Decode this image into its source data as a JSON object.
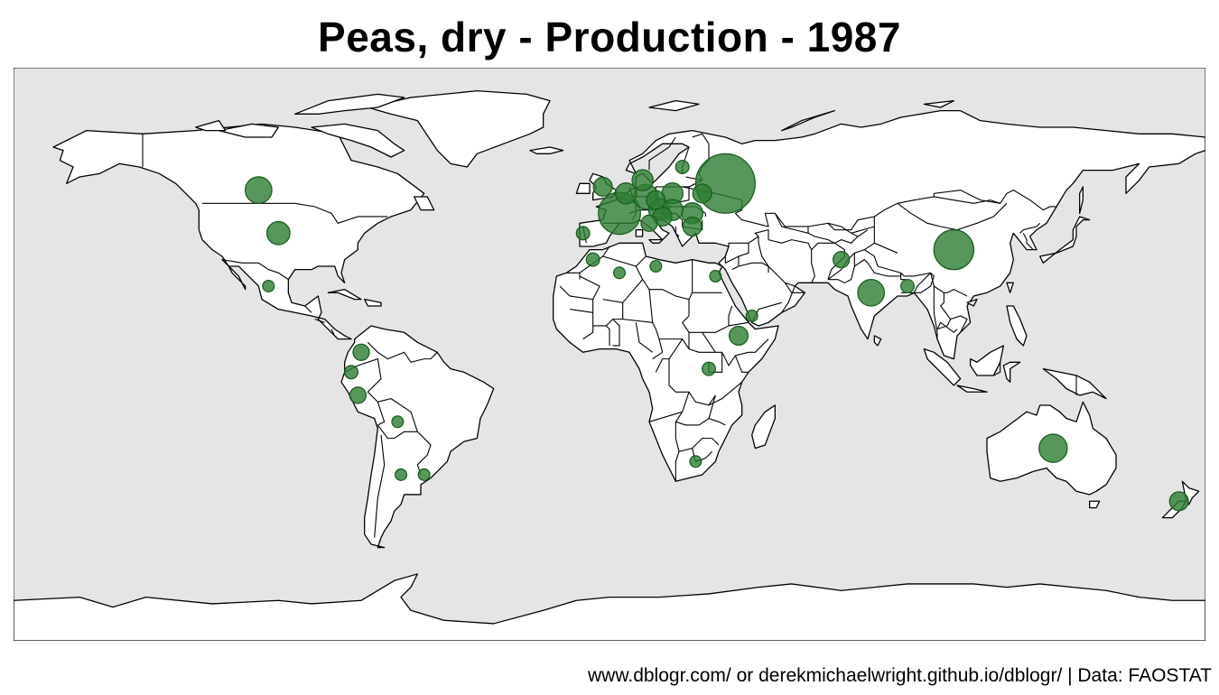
{
  "title": "Peas, dry - Production - 1987",
  "caption": "www.dblogr.com/ or derekmichaelwright.github.io/dblogr/ | Data: FAOSTAT",
  "colors": {
    "ocean": "#e5e5e5",
    "land": "#ffffff",
    "border": "#000000",
    "bubble_fill": "#2e7d32",
    "bubble_stroke": "#1b5e20"
  },
  "chart_data": {
    "type": "bubble-map",
    "projection": "equirectangular",
    "item": "Peas, dry",
    "element": "Production",
    "year": 1987,
    "bubbles": [
      {
        "lon": 35,
        "lat": 55,
        "size": 40
      },
      {
        "lon": 3,
        "lat": 46,
        "size": 20
      },
      {
        "lon": 104,
        "lat": 35,
        "size": 18
      },
      {
        "lon": -106,
        "lat": 53,
        "size": 8
      },
      {
        "lon": 79,
        "lat": 22,
        "size": 8
      },
      {
        "lon": 134,
        "lat": -25,
        "size": 9
      },
      {
        "lon": -100,
        "lat": 40,
        "size": 6
      },
      {
        "lon": 11,
        "lat": 51,
        "size": 7
      },
      {
        "lon": 19,
        "lat": 52,
        "size": 5
      },
      {
        "lon": 5,
        "lat": 52,
        "size": 5
      },
      {
        "lon": 10,
        "lat": 56,
        "size": 5
      },
      {
        "lon": 15,
        "lat": 47,
        "size": 5
      },
      {
        "lon": 25,
        "lat": 46,
        "size": 5
      },
      {
        "lon": 19,
        "lat": 47,
        "size": 5
      },
      {
        "lon": 16,
        "lat": 45,
        "size": 4
      },
      {
        "lon": 14,
        "lat": 50,
        "size": 4
      },
      {
        "lon": 25,
        "lat": 42,
        "size": 4
      },
      {
        "lon": -2,
        "lat": 54,
        "size": 4
      },
      {
        "lon": 12,
        "lat": 43,
        "size": 3
      },
      {
        "lon": 28,
        "lat": 52,
        "size": 4
      },
      {
        "lon": 172,
        "lat": -41,
        "size": 4
      },
      {
        "lon": 39,
        "lat": 9,
        "size": 4
      },
      {
        "lon": 70,
        "lat": 32,
        "size": 3
      },
      {
        "lon": 90,
        "lat": 24,
        "size": 2
      },
      {
        "lon": -75,
        "lat": 4,
        "size": 3
      },
      {
        "lon": -78,
        "lat": -2,
        "size": 2
      },
      {
        "lon": -76,
        "lat": -9,
        "size": 3
      },
      {
        "lon": 30,
        "lat": -1,
        "size": 2
      },
      {
        "lon": 22,
        "lat": 60,
        "size": 2
      },
      {
        "lon": 32,
        "lat": 27,
        "size": 1.5
      },
      {
        "lon": -5,
        "lat": 32,
        "size": 2
      },
      {
        "lon": -8,
        "lat": 40,
        "size": 2
      },
      {
        "lon": -103,
        "lat": 24,
        "size": 1.5
      },
      {
        "lon": -64,
        "lat": -17,
        "size": 1.5
      },
      {
        "lon": -63,
        "lat": -33,
        "size": 1.5
      },
      {
        "lon": -56,
        "lat": -33,
        "size": 1.5
      },
      {
        "lon": 26,
        "lat": -29,
        "size": 1.5
      },
      {
        "lon": 3,
        "lat": 28,
        "size": 1.5
      },
      {
        "lon": 14,
        "lat": 30,
        "size": 1.5
      },
      {
        "lon": 43,
        "lat": 15,
        "size": 1.5
      }
    ]
  }
}
